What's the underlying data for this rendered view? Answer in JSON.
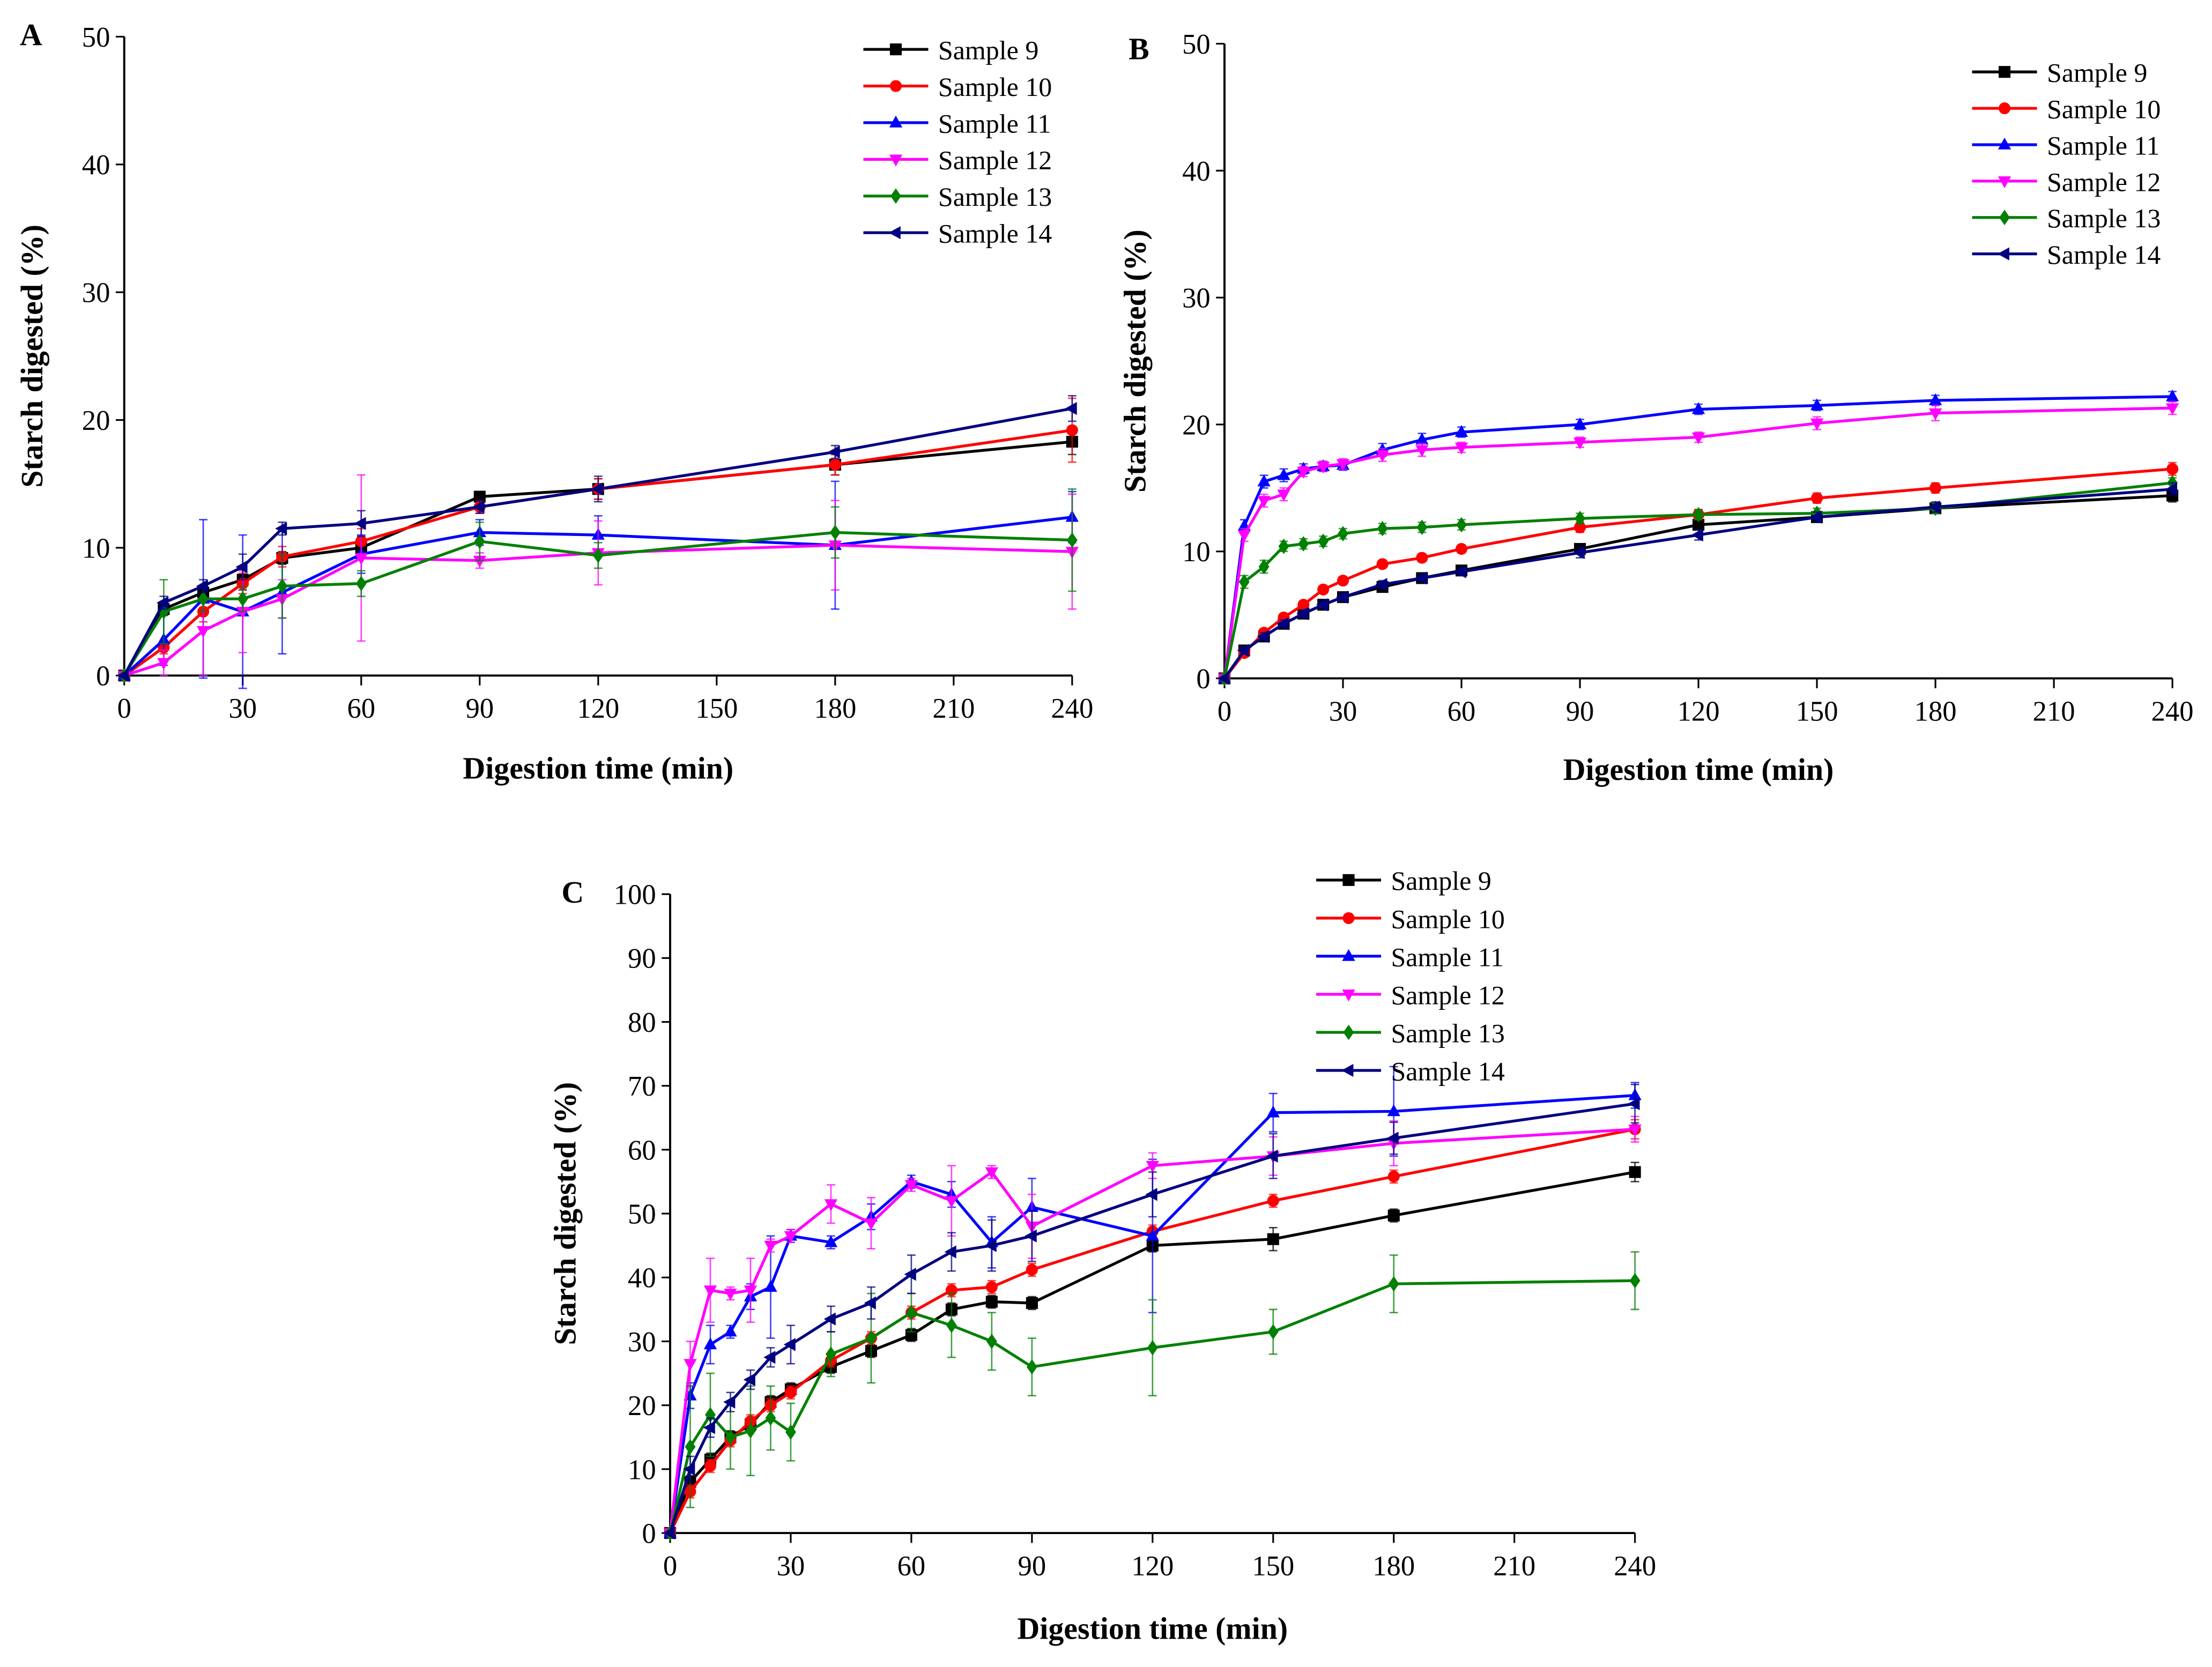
{
  "colors": {
    "Sample 9": "#000000",
    "Sample 10": "#ff0000",
    "Sample 11": "#0000ff",
    "Sample 12": "#ff00ff",
    "Sample 13": "#008000",
    "Sample 14": "#000080"
  },
  "markers": {
    "Sample 9": "square",
    "Sample 10": "circle",
    "Sample 11": "triangle-up",
    "Sample 12": "triangle-down",
    "Sample 13": "diamond",
    "Sample 14": "triangle-left"
  },
  "chart_data": [
    {
      "panel": "A",
      "type": "line",
      "xlabel": "Digestion time (min)",
      "ylabel": "Starch digested (%)",
      "xlim": [
        0,
        240
      ],
      "ylim": [
        0,
        50
      ],
      "xticks": [
        0,
        30,
        60,
        90,
        120,
        150,
        180,
        210,
        240
      ],
      "yticks": [
        0,
        10,
        20,
        30,
        40,
        50
      ],
      "legend_position": "top-right",
      "x": [
        0,
        10,
        20,
        30,
        40,
        60,
        90,
        120,
        180,
        240
      ],
      "series": [
        {
          "name": "Sample 9",
          "values": [
            0,
            5.2,
            6.5,
            7.5,
            9.2,
            10,
            14,
            14.6,
            16.5,
            18.3
          ],
          "err": [
            0,
            0.5,
            0.5,
            0.8,
            0.5,
            0.8,
            0.4,
            0.8,
            0.8,
            1
          ]
        },
        {
          "name": "Sample 10",
          "values": [
            0,
            2.2,
            5,
            7.2,
            9.3,
            10.5,
            13.2,
            14.6,
            16.5,
            19.2
          ],
          "err": [
            0,
            0.5,
            0.8,
            0.8,
            0.8,
            1,
            0.5,
            0.8,
            0.8,
            2.5
          ]
        },
        {
          "name": "Sample 11",
          "values": [
            0,
            2.8,
            6,
            5,
            6.5,
            9.5,
            11.2,
            11,
            10.2,
            12.4
          ],
          "err": [
            0,
            2,
            6.2,
            6,
            4.8,
            1.5,
            1,
            1.5,
            5,
            2
          ]
        },
        {
          "name": "Sample 12",
          "values": [
            0,
            1,
            3.5,
            5,
            6,
            9.2,
            9,
            9.6,
            10.2,
            9.7
          ],
          "err": [
            0,
            1,
            3.5,
            3.2,
            1.5,
            6.5,
            0.6,
            2.5,
            3.5,
            4.5
          ]
        },
        {
          "name": "Sample 13",
          "values": [
            0,
            5,
            6,
            6,
            7,
            7.2,
            10.5,
            9.4,
            11.2,
            10.6
          ],
          "err": [
            0,
            2.5,
            1,
            1,
            2.5,
            1,
            1.5,
            1,
            2,
            4
          ]
        },
        {
          "name": "Sample 14",
          "values": [
            0,
            5.7,
            7,
            8.5,
            11.5,
            11.9,
            13.2,
            14.6,
            17.5,
            20.9
          ],
          "err": [
            0,
            0.5,
            0.5,
            1,
            0.5,
            1,
            0.5,
            1,
            0.5,
            1
          ]
        }
      ]
    },
    {
      "panel": "B",
      "type": "line",
      "xlabel": "Digestion time (min)",
      "ylabel": "Starch digested (%)",
      "xlim": [
        0,
        240
      ],
      "ylim": [
        0,
        50
      ],
      "xticks": [
        0,
        30,
        60,
        90,
        120,
        150,
        180,
        210,
        240
      ],
      "yticks": [
        0,
        10,
        20,
        30,
        40,
        50
      ],
      "legend_position": "top-right",
      "x": [
        0,
        5,
        10,
        15,
        20,
        25,
        30,
        40,
        50,
        60,
        90,
        120,
        150,
        180,
        240
      ],
      "series": [
        {
          "name": "Sample 9",
          "values": [
            0,
            2.2,
            3.3,
            4.3,
            5.1,
            5.8,
            6.4,
            7.2,
            7.9,
            8.5,
            10.2,
            12.1,
            12.7,
            13.4,
            14.4
          ],
          "err": [
            0,
            0.3,
            0.3,
            0.3,
            0.3,
            0.3,
            0.3,
            0.3,
            0.3,
            0.3,
            0.4,
            0.4,
            0.4,
            0.4,
            0.5
          ]
        },
        {
          "name": "Sample 10",
          "values": [
            0,
            2,
            3.6,
            4.8,
            5.8,
            7,
            7.7,
            9,
            9.5,
            10.2,
            11.9,
            12.9,
            14.2,
            15,
            16.5
          ],
          "err": [
            0,
            0.3,
            0.3,
            0.3,
            0.3,
            0.3,
            0.3,
            0.3,
            0.3,
            0.3,
            0.4,
            0.4,
            0.4,
            0.4,
            0.5
          ]
        },
        {
          "name": "Sample 11",
          "values": [
            0,
            12,
            15.5,
            16,
            16.5,
            16.7,
            16.8,
            18,
            18.8,
            19.4,
            20,
            21.2,
            21.5,
            21.9,
            22.2
          ],
          "err": [
            0,
            0.5,
            0.5,
            0.5,
            0.4,
            0.4,
            0.4,
            0.5,
            0.5,
            0.4,
            0.4,
            0.4,
            0.4,
            0.4,
            0.4
          ]
        },
        {
          "name": "Sample 12",
          "values": [
            0,
            11.3,
            14,
            14.5,
            16.3,
            16.7,
            16.9,
            17.6,
            18,
            18.2,
            18.6,
            19,
            20.1,
            20.9,
            21.3
          ],
          "err": [
            0,
            0.5,
            0.5,
            0.5,
            0.4,
            0.4,
            0.4,
            0.5,
            0.5,
            0.4,
            0.4,
            0.4,
            0.5,
            0.6,
            0.5
          ]
        },
        {
          "name": "Sample 13",
          "values": [
            0,
            7.6,
            8.8,
            10.4,
            10.6,
            10.8,
            11.4,
            11.8,
            11.9,
            12.1,
            12.6,
            12.9,
            13,
            13.4,
            15.4
          ],
          "err": [
            0,
            0.5,
            0.5,
            0.4,
            0.4,
            0.4,
            0.4,
            0.4,
            0.4,
            0.4,
            0.4,
            0.4,
            0.4,
            0.4,
            0.4
          ]
        },
        {
          "name": "Sample 14",
          "values": [
            0,
            2.2,
            3.3,
            4.3,
            5.1,
            5.8,
            6.4,
            7.4,
            7.9,
            8.4,
            9.9,
            11.3,
            12.7,
            13.5,
            14.9
          ],
          "err": [
            0,
            0.3,
            0.3,
            0.3,
            0.3,
            0.3,
            0.3,
            0.3,
            0.3,
            0.3,
            0.4,
            0.4,
            0.4,
            0.4,
            0.5
          ]
        }
      ]
    },
    {
      "panel": "C",
      "type": "line",
      "xlabel": "Digestion time (min)",
      "ylabel": "Starch digested (%)",
      "xlim": [
        0,
        240
      ],
      "ylim": [
        0,
        100
      ],
      "xticks": [
        0,
        30,
        60,
        90,
        120,
        150,
        180,
        210,
        240
      ],
      "yticks": [
        0,
        10,
        20,
        30,
        40,
        50,
        60,
        70,
        80,
        90,
        100
      ],
      "legend_position": "top-right",
      "x": [
        0,
        5,
        10,
        15,
        20,
        25,
        30,
        40,
        50,
        60,
        70,
        80,
        90,
        120,
        150,
        180,
        240
      ],
      "series": [
        {
          "name": "Sample 9",
          "values": [
            0,
            8,
            11.5,
            15,
            17,
            20.5,
            22.5,
            26,
            28.5,
            31,
            35,
            36.2,
            36,
            45,
            46,
            49.7,
            56.5
          ],
          "err": [
            0,
            1,
            1,
            1,
            1,
            1,
            1,
            1,
            1,
            1,
            1,
            1,
            1,
            1,
            1.8,
            1,
            1.5
          ]
        },
        {
          "name": "Sample 10",
          "values": [
            0,
            6.5,
            10.5,
            14.5,
            17.5,
            20,
            22,
            27,
            30.5,
            34.5,
            38,
            38.5,
            41.2,
            47.2,
            52,
            55.8,
            63.2
          ],
          "err": [
            0,
            1,
            1,
            1,
            1,
            1,
            1,
            1,
            1,
            1,
            1,
            1,
            1,
            1,
            1,
            1,
            1.5
          ]
        },
        {
          "name": "Sample 11",
          "values": [
            0,
            21.5,
            29.5,
            31.5,
            37,
            38.5,
            46.5,
            45.5,
            49.5,
            55,
            53,
            45.5,
            51,
            46.5,
            65.8,
            66,
            68.5
          ],
          "err": [
            0,
            2,
            3,
            1,
            2,
            8,
            1,
            1,
            2,
            1,
            2,
            4,
            4.5,
            12,
            3,
            7,
            2
          ]
        },
        {
          "name": "Sample 12",
          "values": [
            0,
            26.5,
            38,
            37.5,
            38,
            45,
            46.5,
            51.5,
            48.5,
            54.5,
            52,
            56.5,
            48,
            57.5,
            59,
            61,
            63.2
          ],
          "err": [
            0,
            3.5,
            5,
            1,
            5,
            1,
            1,
            3,
            4,
            1,
            5.5,
            1,
            5,
            2,
            3,
            3.5,
            2
          ]
        },
        {
          "name": "Sample 13",
          "values": [
            0,
            13.5,
            18.5,
            15,
            16,
            18,
            15.8,
            28,
            30.5,
            34.5,
            32.5,
            30,
            26,
            29,
            31.5,
            39,
            39.5
          ],
          "err": [
            0,
            9.5,
            6.5,
            5,
            7,
            5,
            4.5,
            3.5,
            7,
            3,
            5,
            4.5,
            4.5,
            7.5,
            3.5,
            4.5,
            4.5
          ]
        },
        {
          "name": "Sample 14",
          "values": [
            0,
            10,
            16.5,
            20.5,
            24,
            27.5,
            29.5,
            33.5,
            36,
            40.5,
            44,
            45,
            46.5,
            53,
            59,
            61.8,
            67.2
          ],
          "err": [
            0,
            2,
            1.5,
            1.5,
            1.5,
            1.5,
            3,
            2,
            2.5,
            3,
            3,
            4,
            4,
            3.5,
            3.5,
            2.5,
            3
          ]
        }
      ]
    }
  ],
  "panels": [
    {
      "label": "A",
      "xlabel": "Digestion time (min)",
      "ylabel": "Starch digested (%)"
    },
    {
      "label": "B",
      "xlabel": "Digestion time (min)",
      "ylabel": "Starch digested (%)"
    },
    {
      "label": "C",
      "xlabel": "Digestion time (min)",
      "ylabel": "Starch digested (%)"
    }
  ]
}
